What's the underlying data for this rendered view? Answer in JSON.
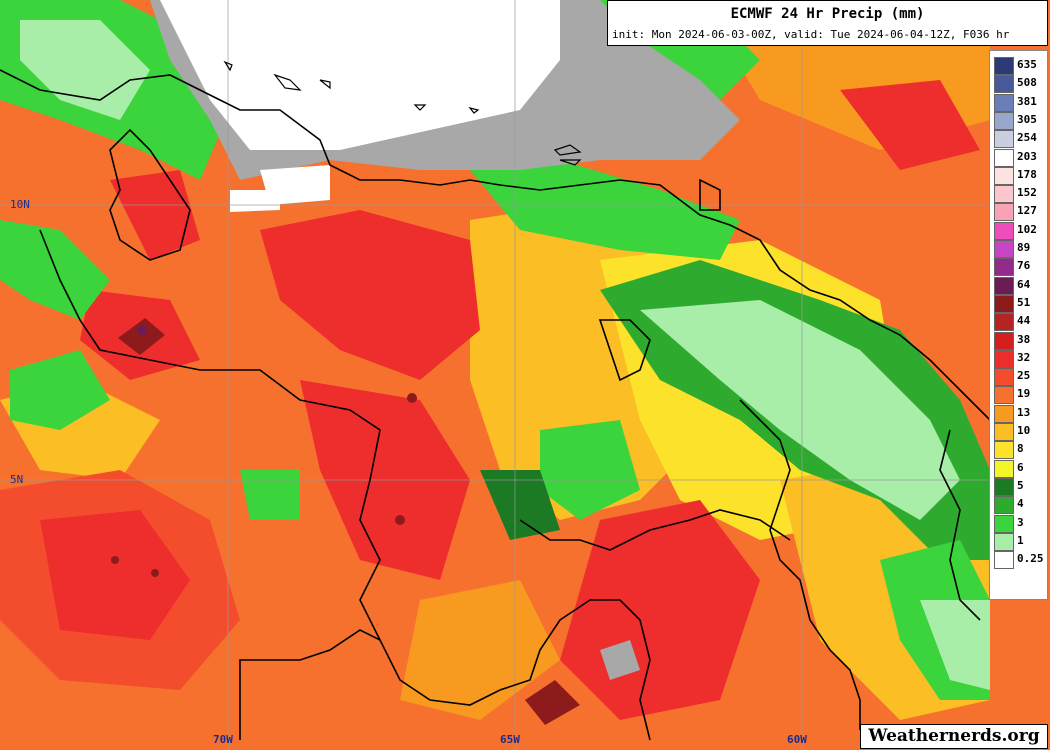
{
  "map": {
    "title": "ECMWF 24 Hr Precip (mm)",
    "subtitle": "init: Mon 2024-06-03-00Z, valid: Tue 2024-06-04-12Z, F036 hr",
    "brand": "Weathernerds.org",
    "lat_labels": [
      "10N",
      "5N"
    ],
    "lon_labels": [
      "70W",
      "65W",
      "60W"
    ]
  },
  "legend": [
    {
      "label": "635",
      "color": "#2c3a78"
    },
    {
      "label": "508",
      "color": "#485a9a"
    },
    {
      "label": "381",
      "color": "#6a7eb8"
    },
    {
      "label": "305",
      "color": "#98a8cc"
    },
    {
      "label": "254",
      "color": "#c9cfde"
    },
    {
      "label": "203",
      "color": "#ffffff"
    },
    {
      "label": "178",
      "color": "#fde2e2"
    },
    {
      "label": "152",
      "color": "#fbc7cc"
    },
    {
      "label": "127",
      "color": "#f7a3b5"
    },
    {
      "label": "102",
      "color": "#ee4dba"
    },
    {
      "label": "89",
      "color": "#c845c4"
    },
    {
      "label": "76",
      "color": "#932b8c"
    },
    {
      "label": "64",
      "color": "#6d1b55"
    },
    {
      "label": "51",
      "color": "#8e1b1b"
    },
    {
      "label": "44",
      "color": "#b52323"
    },
    {
      "label": "38",
      "color": "#d41f1f"
    },
    {
      "label": "32",
      "color": "#ee2d2d"
    },
    {
      "label": "25",
      "color": "#f44d2d"
    },
    {
      "label": "19",
      "color": "#f6712e"
    },
    {
      "label": "13",
      "color": "#f79a1f"
    },
    {
      "label": "10",
      "color": "#fbbe25"
    },
    {
      "label": "8",
      "color": "#fde22b"
    },
    {
      "label": "6",
      "color": "#f2f527"
    },
    {
      "label": "5",
      "color": "#1c7a24"
    },
    {
      "label": "4",
      "color": "#2eaa2e"
    },
    {
      "label": "3",
      "color": "#3cd43c"
    },
    {
      "label": "1",
      "color": "#a8eea8"
    },
    {
      "label": "0.25",
      "color": "#ffffff"
    }
  ]
}
